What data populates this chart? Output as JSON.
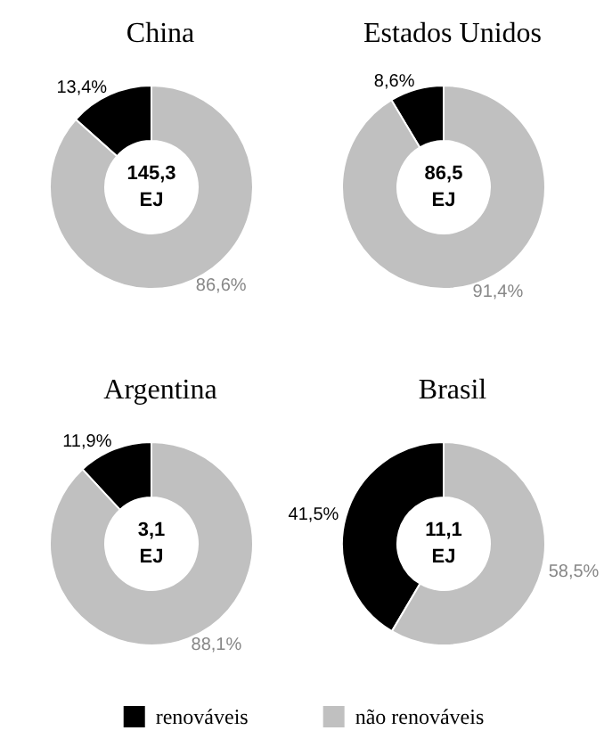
{
  "chart_data": [
    {
      "type": "donut",
      "title": "China",
      "values": [
        13.4,
        86.6
      ],
      "colors": [
        "#000000",
        "#c0c0c0"
      ],
      "value_labels": [
        "13,4%",
        "86,6%"
      ],
      "annotations": [
        "145,3",
        "EJ"
      ]
    },
    {
      "type": "donut",
      "title": "Estados Unidos",
      "values": [
        8.6,
        91.4
      ],
      "colors": [
        "#000000",
        "#c0c0c0"
      ],
      "value_labels": [
        "8,6%",
        "91,4%"
      ],
      "annotations": [
        "86,5",
        "EJ"
      ]
    },
    {
      "type": "donut",
      "title": "Argentina",
      "values": [
        11.9,
        88.1
      ],
      "colors": [
        "#000000",
        "#c0c0c0"
      ],
      "value_labels": [
        "11,9%",
        "88,1%"
      ],
      "annotations": [
        "3,1",
        "EJ"
      ]
    },
    {
      "type": "donut",
      "title": "Brasil",
      "categories": [
        "renováveis",
        "não renováveis"
      ],
      "values": [
        41.5,
        58.5
      ],
      "colors": [
        "#000000",
        "#c0c0c0"
      ],
      "value_labels": [
        "41,5%",
        "58,5%"
      ],
      "annotations": [
        "11,1",
        "EJ"
      ],
      "legend": "bottom"
    }
  ]
}
